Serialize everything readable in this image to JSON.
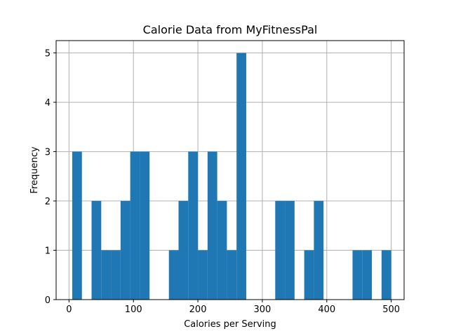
{
  "chart_data": {
    "type": "bar",
    "title": "Calorie Data from MyFitnessPal",
    "xlabel": "Calories per Serving",
    "ylabel": "Frequency",
    "xlim": [
      -20,
      520
    ],
    "ylim": [
      0,
      5.25
    ],
    "grid": true,
    "bar_color": "#1f77b4",
    "bin_width": 15,
    "bins": [
      {
        "x0": 5,
        "x1": 20,
        "count": 3
      },
      {
        "x0": 35,
        "x1": 50,
        "count": 2
      },
      {
        "x0": 50,
        "x1": 65,
        "count": 1
      },
      {
        "x0": 65,
        "x1": 80,
        "count": 1
      },
      {
        "x0": 80,
        "x1": 95,
        "count": 2
      },
      {
        "x0": 95,
        "x1": 110,
        "count": 3
      },
      {
        "x0": 110,
        "x1": 125,
        "count": 3
      },
      {
        "x0": 155,
        "x1": 170,
        "count": 1
      },
      {
        "x0": 170,
        "x1": 185,
        "count": 2
      },
      {
        "x0": 185,
        "x1": 200,
        "count": 3
      },
      {
        "x0": 200,
        "x1": 215,
        "count": 1
      },
      {
        "x0": 215,
        "x1": 230,
        "count": 3
      },
      {
        "x0": 230,
        "x1": 245,
        "count": 2
      },
      {
        "x0": 245,
        "x1": 260,
        "count": 1
      },
      {
        "x0": 260,
        "x1": 275,
        "count": 5
      },
      {
        "x0": 320,
        "x1": 335,
        "count": 2
      },
      {
        "x0": 335,
        "x1": 350,
        "count": 2
      },
      {
        "x0": 365,
        "x1": 380,
        "count": 1
      },
      {
        "x0": 380,
        "x1": 395,
        "count": 2
      },
      {
        "x0": 440,
        "x1": 455,
        "count": 1
      },
      {
        "x0": 455,
        "x1": 470,
        "count": 1
      },
      {
        "x0": 485,
        "x1": 500,
        "count": 1
      }
    ],
    "xticks": [
      0,
      100,
      200,
      300,
      400,
      500
    ],
    "xtick_labels": [
      "0",
      "100",
      "200",
      "300",
      "400",
      "500"
    ],
    "yticks": [
      0,
      1,
      2,
      3,
      4,
      5
    ],
    "ytick_labels": [
      "0",
      "1",
      "2",
      "3",
      "4",
      "5"
    ]
  }
}
